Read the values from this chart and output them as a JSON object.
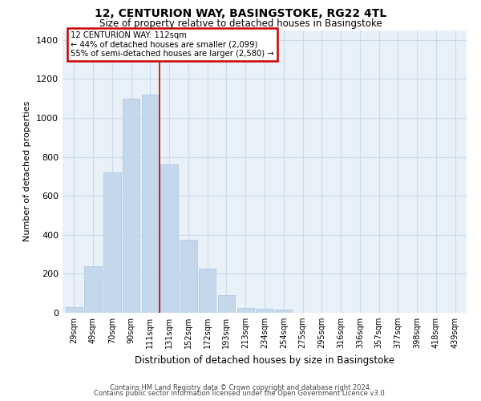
{
  "title1": "12, CENTURION WAY, BASINGSTOKE, RG22 4TL",
  "title2": "Size of property relative to detached houses in Basingstoke",
  "xlabel": "Distribution of detached houses by size in Basingstoke",
  "ylabel": "Number of detached properties",
  "bar_labels": [
    "29sqm",
    "49sqm",
    "70sqm",
    "90sqm",
    "111sqm",
    "131sqm",
    "152sqm",
    "172sqm",
    "193sqm",
    "213sqm",
    "234sqm",
    "254sqm",
    "275sqm",
    "295sqm",
    "316sqm",
    "336sqm",
    "357sqm",
    "377sqm",
    "398sqm",
    "418sqm",
    "439sqm"
  ],
  "bar_values": [
    30,
    240,
    720,
    1100,
    1120,
    760,
    375,
    225,
    90,
    25,
    20,
    15,
    0,
    0,
    0,
    0,
    0,
    0,
    0,
    0,
    0
  ],
  "bar_color": "#c5d8eb",
  "bar_edge_color": "#a8c4de",
  "annotation_title": "12 CENTURION WAY: 112sqm",
  "annotation_line1": "← 44% of detached houses are smaller (2,099)",
  "annotation_line2": "55% of semi-detached houses are larger (2,580) →",
  "annotation_box_facecolor": "#ffffff",
  "annotation_border_color": "#cc0000",
  "property_line_color": "#cc0000",
  "ylim": [
    0,
    1450
  ],
  "yticks": [
    0,
    200,
    400,
    600,
    800,
    1000,
    1200,
    1400
  ],
  "footer1": "Contains HM Land Registry data © Crown copyright and database right 2024.",
  "footer2": "Contains public sector information licensed under the Open Government Licence v3.0.",
  "grid_color": "#ccdae8",
  "background_color": "#e8f0f8"
}
